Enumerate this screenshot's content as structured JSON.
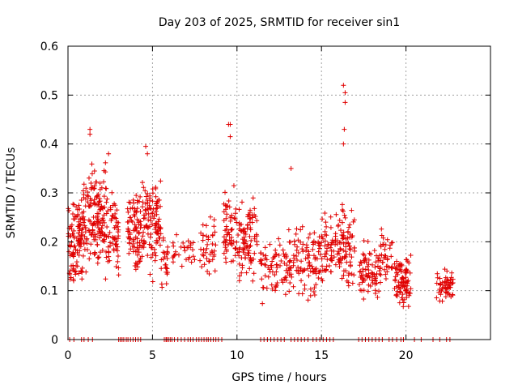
{
  "chart_data": {
    "type": "scatter",
    "title": "Day 203 of 2025, SRMTID for receiver sin1",
    "xlabel": "GPS time / hours",
    "ylabel": "SRMTID / TECUs",
    "xlim": [
      0,
      25
    ],
    "ylim": [
      0,
      0.6
    ],
    "x_ticks": [
      0,
      5,
      10,
      15,
      20
    ],
    "x_tick_labels": [
      "0",
      "5",
      "10",
      "15",
      "20"
    ],
    "y_ticks": [
      0,
      0.1,
      0.2,
      0.3,
      0.4,
      0.5,
      0.6
    ],
    "y_tick_labels": [
      "0",
      "0.1",
      "0.2",
      "0.3",
      "0.4",
      "0.5",
      "0.6"
    ],
    "grid": true,
    "marker": "+",
    "colors": {
      "series": "#e00000",
      "grid": "#a0a0a0",
      "axis": "#000000"
    },
    "series": [
      {
        "name": "SRMTID",
        "clusters": [
          {
            "x": [
              0.0,
              0.9
            ],
            "y_center": 0.2,
            "y_spread": 0.09,
            "count": 110
          },
          {
            "x": [
              0.9,
              2.3
            ],
            "y_center": 0.25,
            "y_spread": 0.1,
            "count": 160
          },
          {
            "x": [
              2.3,
              3.0
            ],
            "y_center": 0.22,
            "y_spread": 0.09,
            "count": 60
          },
          {
            "x": [
              3.5,
              4.4
            ],
            "y_center": 0.22,
            "y_spread": 0.08,
            "count": 90
          },
          {
            "x": [
              4.4,
              5.5
            ],
            "y_center": 0.23,
            "y_spread": 0.1,
            "count": 110
          },
          {
            "x": [
              5.5,
              5.9
            ],
            "y_center": 0.15,
            "y_spread": 0.05,
            "count": 25
          },
          {
            "x": [
              6.2,
              7.5
            ],
            "y_center": 0.18,
            "y_spread": 0.04,
            "count": 30
          },
          {
            "x": [
              7.8,
              8.8
            ],
            "y_center": 0.19,
            "y_spread": 0.06,
            "count": 40
          },
          {
            "x": [
              9.2,
              10.0
            ],
            "y_center": 0.22,
            "y_spread": 0.08,
            "count": 60
          },
          {
            "x": [
              10.0,
              11.2
            ],
            "y_center": 0.2,
            "y_spread": 0.08,
            "count": 90
          },
          {
            "x": [
              11.3,
              13.0
            ],
            "y_center": 0.15,
            "y_spread": 0.06,
            "count": 70
          },
          {
            "x": [
              13.0,
              15.0
            ],
            "y_center": 0.16,
            "y_spread": 0.07,
            "count": 110
          },
          {
            "x": [
              15.0,
              17.0
            ],
            "y_center": 0.19,
            "y_spread": 0.08,
            "count": 140
          },
          {
            "x": [
              17.2,
              18.5
            ],
            "y_center": 0.14,
            "y_spread": 0.05,
            "count": 80
          },
          {
            "x": [
              18.5,
              19.2
            ],
            "y_center": 0.17,
            "y_spread": 0.05,
            "count": 35
          },
          {
            "x": [
              19.3,
              20.3
            ],
            "y_center": 0.12,
            "y_spread": 0.05,
            "count": 90
          },
          {
            "x": [
              21.8,
              22.8
            ],
            "y_center": 0.11,
            "y_spread": 0.03,
            "count": 55
          }
        ],
        "outliers": [
          {
            "x": 1.3,
            "y": 0.43
          },
          {
            "x": 1.3,
            "y": 0.42
          },
          {
            "x": 2.4,
            "y": 0.38
          },
          {
            "x": 4.6,
            "y": 0.395
          },
          {
            "x": 4.7,
            "y": 0.38
          },
          {
            "x": 9.5,
            "y": 0.44
          },
          {
            "x": 9.6,
            "y": 0.44
          },
          {
            "x": 9.6,
            "y": 0.415
          },
          {
            "x": 13.2,
            "y": 0.35
          },
          {
            "x": 16.3,
            "y": 0.52
          },
          {
            "x": 16.4,
            "y": 0.505
          },
          {
            "x": 16.4,
            "y": 0.485
          },
          {
            "x": 16.35,
            "y": 0.43
          },
          {
            "x": 16.3,
            "y": 0.4
          }
        ],
        "zero_times": [
          0.1,
          0.35,
          0.8,
          0.95,
          1.2,
          1.45,
          3.0,
          3.1,
          3.2,
          3.3,
          3.45,
          3.55,
          3.7,
          3.85,
          4.0,
          4.15,
          4.3,
          5.7,
          5.8,
          5.85,
          5.95,
          6.05,
          6.15,
          6.3,
          6.5,
          6.7,
          6.9,
          7.1,
          7.25,
          7.4,
          7.6,
          7.75,
          7.9,
          8.05,
          8.2,
          8.3,
          8.45,
          8.6,
          8.75,
          8.9,
          9.1,
          11.4,
          11.6,
          11.8,
          12.0,
          12.2,
          12.4,
          12.6,
          12.8,
          13.2,
          13.4,
          13.6,
          13.8,
          14.0,
          14.2,
          14.5,
          14.7,
          14.9,
          15.1,
          15.3,
          15.5,
          15.7,
          17.2,
          17.4,
          17.6,
          17.8,
          18.0,
          18.2,
          18.4,
          18.6,
          19.0,
          19.2,
          19.45,
          19.7,
          19.85,
          20.5,
          20.9,
          21.6,
          22.0,
          22.4,
          22.6
        ],
        "seed": 203
      }
    ]
  }
}
